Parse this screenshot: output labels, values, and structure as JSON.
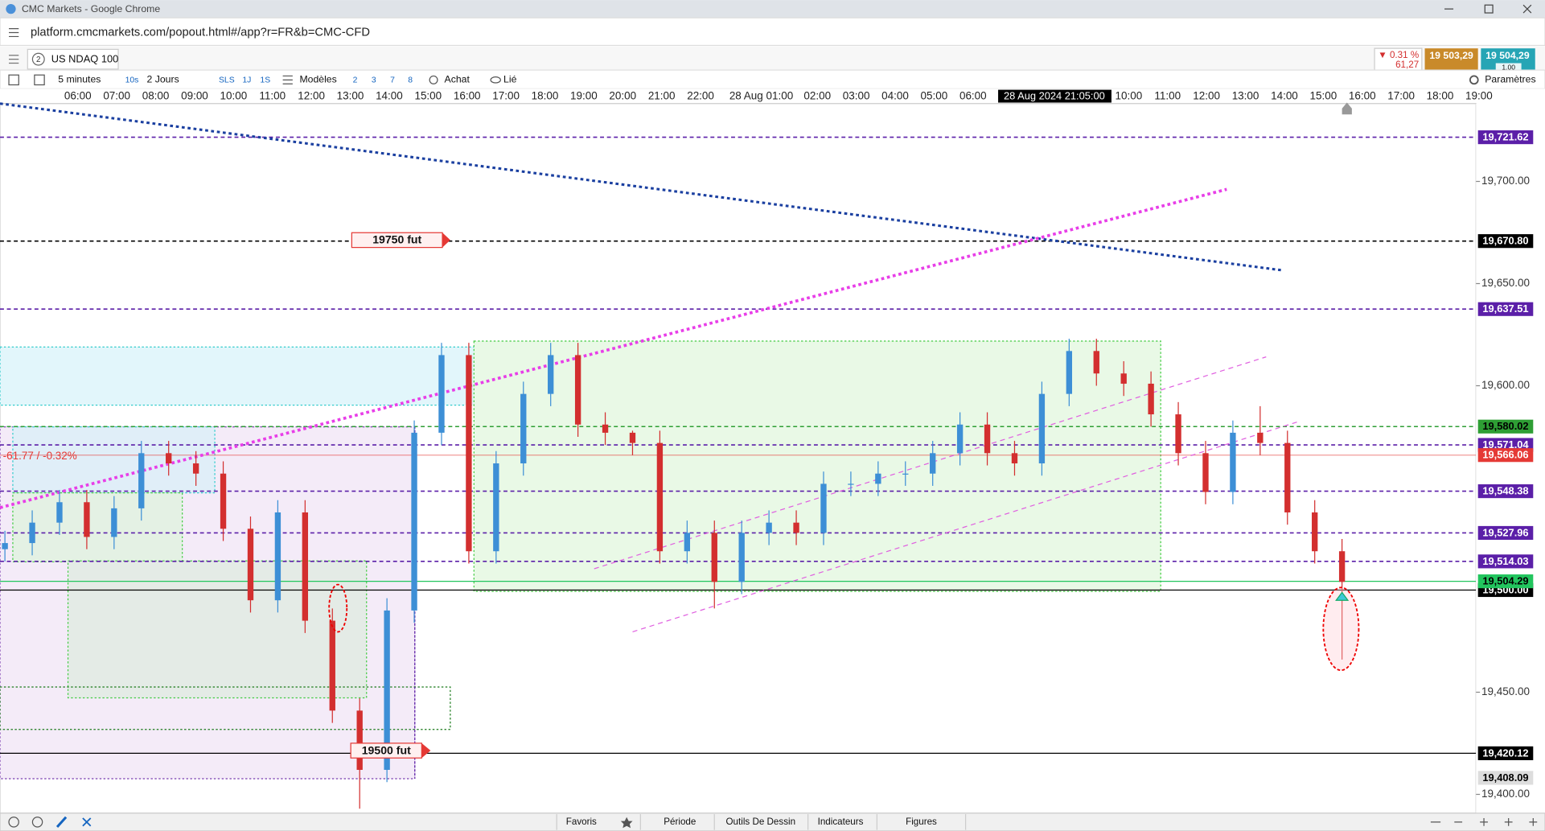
{
  "browser": {
    "window_title": "CMC Markets - Google Chrome",
    "url": "platform.cmcmarkets.com/popout.html#/app?r=FR&b=CMC-CFD"
  },
  "tab": {
    "number": "2",
    "instrument": "US NDAQ 100"
  },
  "quote": {
    "change_pct": "▼ 0.31 %",
    "change": "61,27",
    "sell": "19 503,29",
    "buy": "19 504,29",
    "size": "1.00"
  },
  "toolbar": {
    "interval": "5 minutes",
    "tick": "10s",
    "range": "2 Jours",
    "presets": [
      "SLS",
      "1J",
      "1S"
    ],
    "templates": "Modèles",
    "layouts": [
      "2",
      "3",
      "7",
      "8"
    ],
    "buy": "Achat",
    "linked": "Lié",
    "settings": "Paramètres"
  },
  "footer": {
    "tabs": [
      "Favoris",
      "Période",
      "Outils De Dessin",
      "Indicateurs",
      "Figures"
    ]
  },
  "chart_data": {
    "type": "candlestick",
    "ylim": [
      19390.8,
      19738.1
    ],
    "yticks": [
      {
        "value": 19700,
        "label": "19,700.00"
      },
      {
        "value": 19650,
        "label": "19,650.00"
      },
      {
        "value": 19600,
        "label": "19,600.00"
      },
      {
        "value": 19450,
        "label": "19,450.00"
      },
      {
        "value": 19400,
        "label": "19,400.00"
      }
    ],
    "time_labels": [
      "06:00",
      "07:00",
      "08:00",
      "09:00",
      "10:00",
      "11:00",
      "12:00",
      "13:00",
      "14:00",
      "15:00",
      "16:00",
      "17:00",
      "18:00",
      "19:00",
      "20:00",
      "21:00",
      "22:00",
      "28 Aug 01:00",
      "02:00",
      "03:00",
      "04:00",
      "05:00",
      "06:00",
      "10:00",
      "11:00",
      "12:00",
      "13:00",
      "14:00",
      "15:00",
      "16:00",
      "17:00",
      "18:00",
      "19:00"
    ],
    "crosshair_time": "28 Aug 2024 21:05:00",
    "annotations": {
      "change": "-61.77 / -0.32%",
      "tag_high": "19750  fut",
      "tag_low": "19500 fut"
    },
    "up_color": "#3d8fd6",
    "down_color": "#d32f2f",
    "open": [
      19520,
      19523,
      19533,
      19543,
      19526,
      19540,
      19567,
      19562,
      19557,
      19530,
      19495,
      19538,
      19485,
      19441,
      19412,
      19490,
      19577,
      19615,
      19519,
      19562,
      19596,
      19615,
      19581,
      19577,
      19572,
      19519,
      19528,
      19504,
      19528,
      19533,
      19528,
      19552,
      19552,
      19557,
      19557,
      19567,
      19581,
      19567,
      19562,
      19596,
      19617,
      19606,
      19601,
      19586,
      19567,
      19548,
      19577,
      19572,
      19538,
      19519
    ],
    "high": [
      19529,
      19539,
      19549,
      19549,
      19546,
      19573,
      19573,
      19568,
      19563,
      19536,
      19544,
      19544,
      19491,
      19447,
      19496,
      19583,
      19621,
      19621,
      19568,
      19602,
      19621,
      19621,
      19587,
      19578,
      19578,
      19534,
      19534,
      19534,
      19539,
      19539,
      19558,
      19558,
      19563,
      19563,
      19573,
      19587,
      19587,
      19573,
      19602,
      19623,
      19623,
      19612,
      19607,
      19592,
      19573,
      19583,
      19590,
      19578,
      19544,
      19525
    ],
    "low": [
      19514,
      19517,
      19527,
      19520,
      19520,
      19534,
      19556,
      19551,
      19524,
      19489,
      19489,
      19479,
      19435,
      19393,
      19406,
      19484,
      19571,
      19513,
      19513,
      19556,
      19590,
      19575,
      19571,
      19566,
      19513,
      19513,
      19491,
      19498,
      19522,
      19522,
      19522,
      19546,
      19546,
      19551,
      19551,
      19561,
      19561,
      19556,
      19556,
      19590,
      19600,
      19595,
      19580,
      19561,
      19542,
      19542,
      19566,
      19532,
      19513,
      19466
    ],
    "close": [
      19523,
      19533,
      19543,
      19526,
      19540,
      19567,
      19562,
      19557,
      19530,
      19495,
      19538,
      19485,
      19441,
      19412,
      19490,
      19577,
      19615,
      19519,
      19562,
      19596,
      19615,
      19581,
      19577,
      19572,
      19519,
      19528,
      19504,
      19528,
      19533,
      19528,
      19552,
      19552,
      19557,
      19557,
      19567,
      19581,
      19567,
      19562,
      19596,
      19617,
      19606,
      19601,
      19586,
      19567,
      19548,
      19577,
      19572,
      19538,
      19519,
      19504
    ],
    "levels": [
      {
        "value": 19721.62,
        "label": "19,721.62",
        "color": "#5b1fa8",
        "text_color": "#ffffff",
        "line": "dashed"
      },
      {
        "value": 19670.8,
        "label": "19,670.80",
        "color": "#000000",
        "text_color": "#ffffff",
        "line": "dashed"
      },
      {
        "value": 19637.51,
        "label": "19,637.51",
        "color": "#5b1fa8",
        "text_color": "#ffffff",
        "line": "dashed"
      },
      {
        "value": 19580.02,
        "label": "19,580.02",
        "color": "#2e9e34",
        "text_color": "#000000",
        "line": "dashed"
      },
      {
        "value": 19571.04,
        "label": "19,571.04",
        "color": "#5b1fa8",
        "text_color": "#ffffff",
        "line": "dashed"
      },
      {
        "value": 19566.06,
        "label": "19,566.06",
        "color": "#e53935",
        "text_color": "#ffffff",
        "line": "solid"
      },
      {
        "value": 19548.38,
        "label": "19,548.38",
        "color": "#5b1fa8",
        "text_color": "#ffffff",
        "line": "dashed"
      },
      {
        "value": 19527.96,
        "label": "19,527.96",
        "color": "#5b1fa8",
        "text_color": "#ffffff",
        "line": "dashed"
      },
      {
        "value": 19514.03,
        "label": "19,514.03",
        "color": "#5b1fa8",
        "text_color": "#ffffff",
        "line": "dashed"
      },
      {
        "value": 19500.0,
        "label": "19,500.00",
        "color": "#000000",
        "text_color": "#ffffff",
        "line": "solid"
      },
      {
        "value": 19504.29,
        "label": "19,504.29",
        "color": "#22c55e",
        "text_color": "#000000",
        "line": "solid"
      },
      {
        "value": 19420.12,
        "label": "19,420.12",
        "color": "#000000",
        "text_color": "#ffffff",
        "line": "solid"
      },
      {
        "value": 19408.09,
        "label": "19,408.09",
        "color": "#dddddd",
        "text_color": "#000000",
        "line": "none"
      }
    ]
  }
}
